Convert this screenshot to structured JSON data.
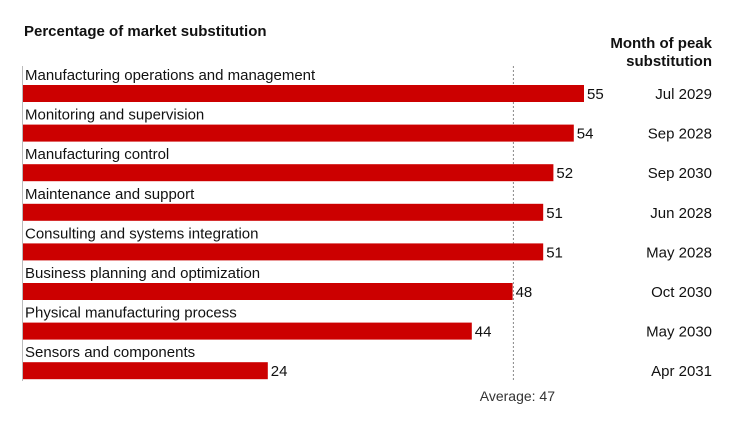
{
  "chart_data": {
    "type": "bar",
    "orientation": "horizontal",
    "title": "Percentage of market substitution",
    "right_column_title": [
      "Month of peak",
      "substitution"
    ],
    "categories": [
      "Manufacturing operations and management",
      "Monitoring and supervision",
      "Manufacturing control",
      "Maintenance and support",
      "Consulting and systems integration",
      "Business planning and optimization",
      "Physical manufacturing process",
      "Sensors and components"
    ],
    "values": [
      55,
      54,
      52,
      51,
      51,
      48,
      44,
      24
    ],
    "peak_months": [
      "Jul 2029",
      "Sep 2028",
      "Sep 2030",
      "Jun 2028",
      "May 2028",
      "Oct 2030",
      "May 2030",
      "Apr 2031"
    ],
    "average": 47,
    "average_label": "Average: 47",
    "bar_color": "#cc0000",
    "xlim": [
      0,
      55
    ],
    "grid": false
  }
}
